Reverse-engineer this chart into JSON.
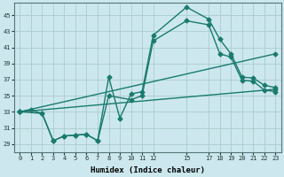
{
  "xlabel": "Humidex (Indice chaleur)",
  "bg_color": "#cce8ee",
  "grid_color": "#aacccc",
  "line_color": "#1a7a6e",
  "xlim": [
    -0.5,
    23.5
  ],
  "ylim": [
    28,
    46.5
  ],
  "xticks": [
    0,
    1,
    2,
    3,
    4,
    5,
    6,
    7,
    8,
    9,
    10,
    11,
    12,
    15,
    17,
    18,
    19,
    20,
    21,
    22,
    23
  ],
  "xtick_labels": [
    "0",
    "1",
    "2",
    "3",
    "4",
    "5",
    "6",
    "7",
    "8",
    "9",
    "10",
    "11",
    "12",
    "15",
    "17",
    "18",
    "19",
    "20",
    "21",
    "22",
    "23"
  ],
  "yticks": [
    29,
    31,
    33,
    35,
    37,
    39,
    41,
    43,
    45
  ],
  "curve1_x": [
    0,
    1,
    2,
    3,
    4,
    5,
    6,
    7,
    8,
    9,
    10,
    11,
    12,
    15,
    17,
    18,
    19,
    20,
    21,
    22,
    23
  ],
  "curve1_y": [
    33.0,
    33.2,
    32.8,
    29.4,
    30.0,
    30.1,
    30.2,
    29.4,
    37.3,
    32.2,
    35.2,
    35.5,
    42.5,
    46.0,
    44.5,
    42.0,
    40.2,
    37.3,
    37.2,
    36.3,
    36.0
  ],
  "curve2_x": [
    0,
    2,
    3,
    4,
    5,
    6,
    7,
    8,
    10,
    11,
    12,
    15,
    17,
    18,
    19,
    20,
    21,
    22,
    23
  ],
  "curve2_y": [
    33.0,
    32.8,
    29.4,
    30.0,
    30.1,
    30.2,
    29.4,
    35.0,
    34.5,
    35.0,
    41.8,
    44.3,
    43.8,
    40.2,
    39.8,
    36.9,
    36.8,
    35.7,
    35.5
  ],
  "line3_x": [
    0,
    23
  ],
  "line3_y": [
    33.0,
    40.2
  ],
  "line4_x": [
    0,
    23
  ],
  "line4_y": [
    33.0,
    35.8
  ]
}
